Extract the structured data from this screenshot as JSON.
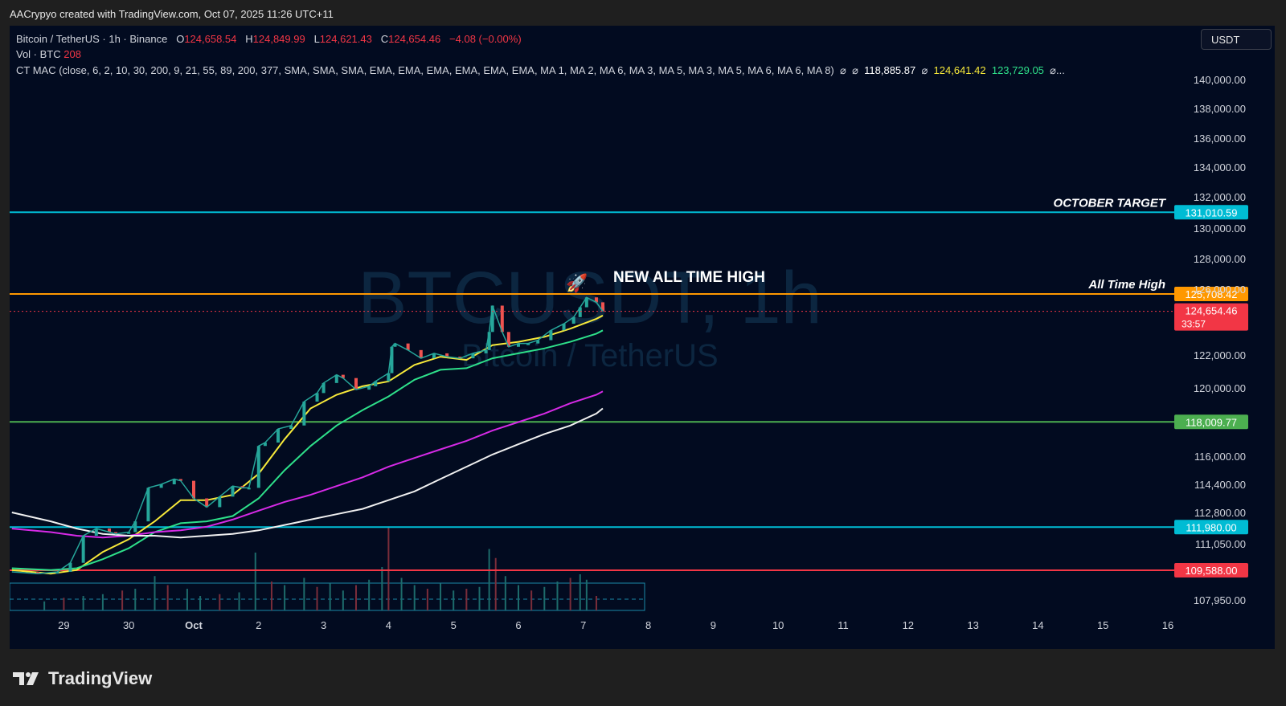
{
  "header": {
    "attribution": "AACrypyo created with TradingView.com, Oct 07, 2025 11:26 UTC+11"
  },
  "legend": {
    "symbol": "Bitcoin / TetherUS · 1h · Binance",
    "o_label": "O",
    "o_value": "124,658.54",
    "h_label": "H",
    "h_value": "124,849.99",
    "l_label": "L",
    "l_value": "124,621.43",
    "c_label": "C",
    "c_value": "124,654.46",
    "change": "−4.08 (−0.00%)",
    "vol_label": "Vol · BTC",
    "vol_value": "208",
    "ctmac_label": "CT MAC (close, 6, 2, 10, 30, 200, 9, 21, 55, 89, 200, 377, SMA, SMA, SMA, EMA, EMA, EMA, EMA, EMA, EMA, MA 1, MA 2, MA 6, MA 3, MA 5, MA 3, MA 5, MA 6, MA 6, MA 8)",
    "ctmac_sym1": "⌀",
    "ctmac_sym2": "⌀",
    "ctmac_v1": "118,885.87",
    "ctmac_sym3": "⌀",
    "ctmac_v2": "124,641.42",
    "ctmac_v3": "123,729.05",
    "ctmac_sym4": "⌀..."
  },
  "currency_button": "USDT",
  "watermark": {
    "symbol": "BTCUSDT, 1h",
    "name": "Bitcoin / TetherUS"
  },
  "footer": {
    "brand": "TradingView"
  },
  "colors": {
    "background": "#020b20",
    "up": "#26a69a",
    "down": "#ef5350",
    "ma_yellow": "#f7e93a",
    "ma_green": "#2ee08a",
    "ma_magenta": "#d62ae6",
    "ma_white": "#f0f0f0"
  },
  "chart_data": {
    "type": "line",
    "instrument": "Bitcoin / TetherUS",
    "interval": "1h",
    "y_axis": {
      "ticks": [
        140000,
        138000,
        136000,
        134000,
        132000,
        130000,
        128000,
        126000,
        122000,
        120000,
        116000,
        114400,
        112800,
        111050,
        107950
      ],
      "tick_labels": [
        "140,000.00",
        "138,000.00",
        "136,000.00",
        "134,000.00",
        "132,000.00",
        "130,000.00",
        "128,000.00",
        "126,000.00",
        "122,000.00",
        "120,000.00",
        "116,000.00",
        "114,400.00",
        "112,800.00",
        "111,050.00",
        "107,950.00"
      ]
    },
    "x_axis": {
      "tick_labels": [
        "29",
        "30",
        "Oct",
        "2",
        "3",
        "4",
        "5",
        "6",
        "7",
        "8",
        "9",
        "10",
        "11",
        "12",
        "13",
        "14",
        "15",
        "16"
      ],
      "tick_days": [
        -2,
        -1,
        0,
        1,
        2,
        3,
        4,
        5,
        6,
        7,
        8,
        9,
        10,
        11,
        12,
        13,
        14,
        15
      ]
    },
    "horizontal_levels": [
      {
        "price": 131010.59,
        "label": "131,010.59",
        "color": "#00bcd4",
        "note": "OCTOBER TARGET"
      },
      {
        "price": 125708.42,
        "label": "125,708.42",
        "color": "#ff9800",
        "note": "All Time High"
      },
      {
        "price": 118009.77,
        "label": "118,009.77",
        "color": "#4caf50",
        "note": ""
      },
      {
        "price": 111980.0,
        "label": "111,980.00",
        "color": "#00bcd4",
        "note": ""
      },
      {
        "price": 109588.0,
        "label": "109,588.00",
        "color": "#f23645",
        "note": ""
      }
    ],
    "last_price": {
      "price": 124654.46,
      "label": "124,654.46",
      "countdown": "33:57"
    },
    "annotation": {
      "text": "NEW ALL TIME HIGH",
      "icon": "rocket-icon"
    },
    "price_path": {
      "x": [
        -2.8,
        -2.4,
        -2.1,
        -1.9,
        -1.7,
        -1.5,
        -1.3,
        -1.2,
        -1.0,
        -0.9,
        -0.7,
        -0.5,
        -0.3,
        -0.2,
        0.0,
        0.2,
        0.4,
        0.6,
        0.75,
        0.85,
        1.0,
        1.1,
        1.3,
        1.5,
        1.7,
        1.9,
        2.0,
        2.2,
        2.3,
        2.5,
        2.7,
        2.8,
        3.0,
        3.05,
        3.1,
        3.3,
        3.5,
        3.7,
        3.9,
        4.1,
        4.3,
        4.5,
        4.55,
        4.6,
        4.75,
        4.85,
        5.0,
        5.15,
        5.3,
        5.5,
        5.7,
        5.85,
        5.95,
        6.05,
        6.2,
        6.3
      ],
      "y": [
        109500,
        109400,
        109500,
        110000,
        111500,
        111900,
        111700,
        111600,
        111700,
        112300,
        114200,
        114400,
        114700,
        114600,
        113600,
        113100,
        113700,
        114300,
        114200,
        114200,
        116600,
        116800,
        117600,
        117800,
        119200,
        119700,
        120300,
        120800,
        120600,
        119900,
        120100,
        120400,
        120900,
        122500,
        122700,
        122300,
        121800,
        122100,
        121900,
        121800,
        122100,
        122300,
        123400,
        125000,
        123400,
        122500,
        122700,
        122700,
        122900,
        123500,
        123900,
        124300,
        124900,
        125500,
        125200,
        124654
      ]
    },
    "series": [
      {
        "name": "",
        "color": "#f7e93a",
        "x": [
          -2.8,
          -2.2,
          -1.8,
          -1.4,
          -1.0,
          -0.6,
          -0.2,
          0.2,
          0.6,
          1.0,
          1.4,
          1.8,
          2.2,
          2.6,
          3.0,
          3.4,
          3.8,
          4.2,
          4.6,
          5.0,
          5.4,
          5.8,
          6.2,
          6.3
        ],
        "y": [
          109600,
          109400,
          109600,
          110600,
          111300,
          112300,
          113500,
          113500,
          113800,
          115000,
          117000,
          118800,
          119600,
          120100,
          120400,
          121400,
          121900,
          121700,
          122600,
          122800,
          123100,
          123600,
          124200,
          124400
        ]
      },
      {
        "name": "",
        "color": "#2ee08a",
        "x": [
          -2.8,
          -2.2,
          -1.8,
          -1.4,
          -1.0,
          -0.6,
          -0.2,
          0.2,
          0.6,
          1.0,
          1.4,
          1.8,
          2.2,
          2.6,
          3.0,
          3.4,
          3.8,
          4.2,
          4.6,
          5.0,
          5.4,
          5.8,
          6.2,
          6.3
        ],
        "y": [
          109700,
          109600,
          109700,
          110200,
          110800,
          111700,
          112200,
          112300,
          112600,
          113600,
          115200,
          116600,
          117800,
          118700,
          119500,
          120500,
          121100,
          121200,
          121800,
          122100,
          122400,
          122800,
          123300,
          123500
        ]
      },
      {
        "name": "",
        "color": "#d62ae6",
        "x": [
          -2.8,
          -2.2,
          -1.8,
          -1.4,
          -1.0,
          -0.6,
          -0.2,
          0.2,
          0.6,
          1.0,
          1.4,
          1.8,
          2.2,
          2.6,
          3.0,
          3.4,
          3.8,
          4.2,
          4.6,
          5.0,
          5.4,
          5.8,
          6.2,
          6.3
        ],
        "y": [
          111900,
          111700,
          111500,
          111400,
          111500,
          111700,
          111800,
          112000,
          112400,
          112900,
          113400,
          113800,
          114300,
          114800,
          115400,
          115900,
          116400,
          116900,
          117500,
          118000,
          118500,
          119100,
          119600,
          119800
        ]
      },
      {
        "name": "",
        "color": "#f0f0f0",
        "x": [
          -2.8,
          -2.2,
          -1.8,
          -1.4,
          -1.0,
          -0.6,
          -0.2,
          0.2,
          0.6,
          1.0,
          1.4,
          1.8,
          2.2,
          2.6,
          3.0,
          3.4,
          3.8,
          4.2,
          4.6,
          5.0,
          5.4,
          5.8,
          6.2,
          6.3
        ],
        "y": [
          112800,
          112300,
          111900,
          111600,
          111500,
          111500,
          111400,
          111500,
          111600,
          111800,
          112100,
          112400,
          112700,
          113000,
          113500,
          114000,
          114700,
          115400,
          116100,
          116700,
          117300,
          117800,
          118500,
          118800
        ]
      }
    ],
    "volume": {
      "x": [
        -2.3,
        -2.0,
        -1.7,
        -1.4,
        -1.1,
        -0.9,
        -0.6,
        -0.4,
        -0.1,
        0.1,
        0.4,
        0.7,
        0.95,
        1.2,
        1.4,
        1.7,
        1.9,
        2.1,
        2.3,
        2.5,
        2.7,
        2.9,
        3.0,
        3.2,
        3.4,
        3.6,
        3.8,
        4.0,
        4.2,
        4.4,
        4.55,
        4.65,
        4.8,
        5.0,
        5.2,
        5.4,
        5.6,
        5.8,
        5.95,
        6.05,
        6.2
      ],
      "v": [
        25,
        35,
        40,
        45,
        55,
        60,
        95,
        70,
        60,
        40,
        45,
        50,
        160,
        80,
        70,
        90,
        65,
        75,
        55,
        70,
        85,
        120,
        230,
        90,
        70,
        60,
        75,
        55,
        60,
        65,
        170,
        145,
        95,
        70,
        55,
        65,
        80,
        90,
        100,
        85,
        40
      ]
    },
    "grid": false,
    "legend_position": "top-left"
  }
}
